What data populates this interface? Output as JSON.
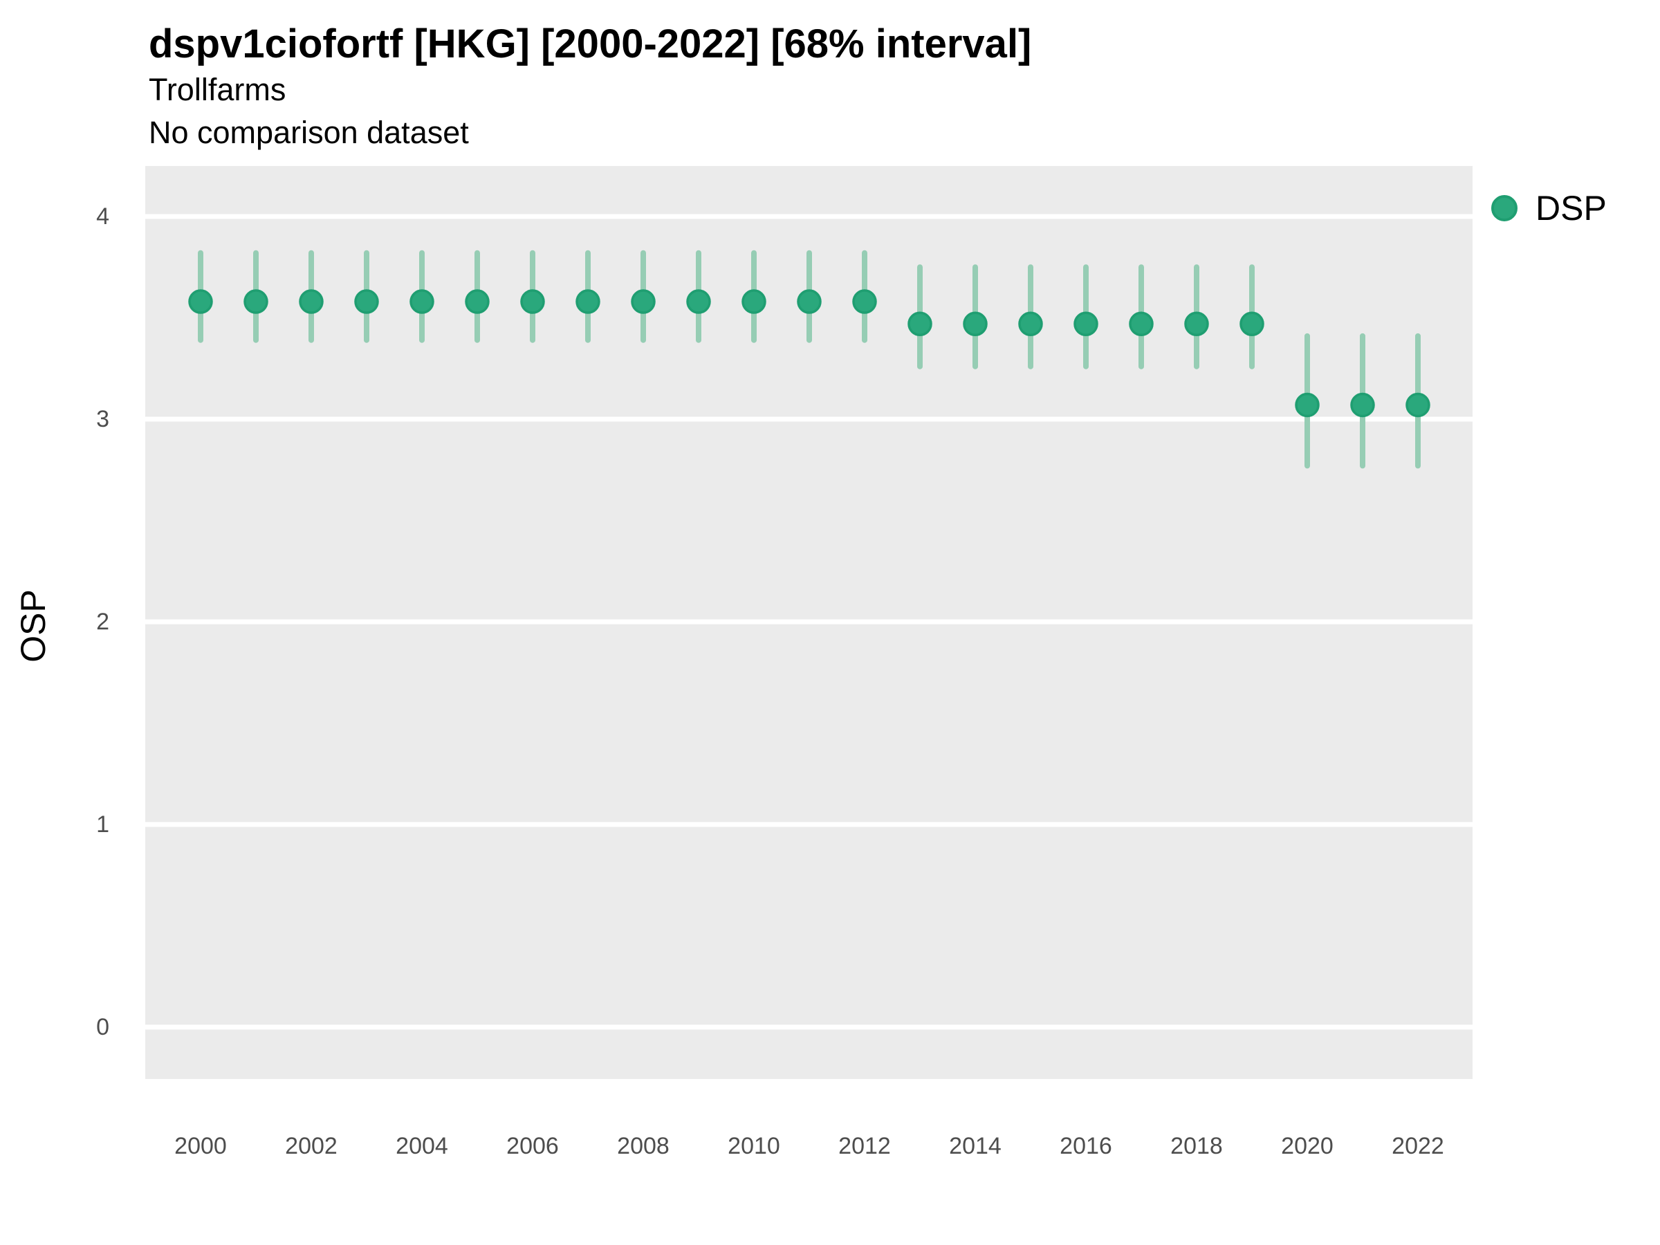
{
  "header": {
    "title": "dspv1ciofortf [HKG] [2000-2022] [68% interval]",
    "subtitle": "Trollfarms",
    "comparison_note": "No comparison dataset"
  },
  "legend": {
    "items": [
      {
        "label": "DSP",
        "color": "#2aa87c"
      }
    ]
  },
  "colors": {
    "plot_background": "#ebebeb",
    "gridline": "#ffffff",
    "marker_fill": "#2aa87c",
    "marker_stroke": "#1f9e71",
    "error_bar": "#96cdb4",
    "tick_text": "#4d4d4d",
    "text": "#000000"
  },
  "chart_data": {
    "type": "scatter",
    "title": "dspv1ciofortf [HKG] [2000-2022] [68% interval]",
    "subtitle": "Trollfarms",
    "note": "No comparison dataset",
    "xlabel": "",
    "ylabel": "OSP",
    "legend_position": "right-top",
    "grid": "major-horizontal-white-on-gray",
    "x": [
      2000,
      2001,
      2002,
      2003,
      2004,
      2005,
      2006,
      2007,
      2008,
      2009,
      2010,
      2011,
      2012,
      2013,
      2014,
      2015,
      2016,
      2017,
      2018,
      2019,
      2020,
      2021,
      2022
    ],
    "x_tick_labels": [
      "2000",
      "2002",
      "2004",
      "2006",
      "2008",
      "2010",
      "2012",
      "2014",
      "2016",
      "2018",
      "2020",
      "2022"
    ],
    "y_ticks": [
      0,
      1,
      2,
      3,
      4
    ],
    "ylim": [
      -0.26,
      4.25
    ],
    "interval": "68%",
    "series": [
      {
        "name": "DSP",
        "values": [
          3.58,
          3.58,
          3.58,
          3.58,
          3.58,
          3.58,
          3.58,
          3.58,
          3.58,
          3.58,
          3.58,
          3.58,
          3.58,
          3.47,
          3.47,
          3.47,
          3.47,
          3.47,
          3.47,
          3.47,
          3.07,
          3.07,
          3.07
        ],
        "lower_68": [
          3.39,
          3.39,
          3.39,
          3.39,
          3.39,
          3.39,
          3.39,
          3.39,
          3.39,
          3.39,
          3.39,
          3.39,
          3.39,
          3.26,
          3.26,
          3.26,
          3.26,
          3.26,
          3.26,
          3.26,
          2.77,
          2.77,
          2.77
        ],
        "upper_68": [
          3.82,
          3.82,
          3.82,
          3.82,
          3.82,
          3.82,
          3.82,
          3.82,
          3.82,
          3.82,
          3.82,
          3.82,
          3.82,
          3.75,
          3.75,
          3.75,
          3.75,
          3.75,
          3.75,
          3.75,
          3.41,
          3.41,
          3.41
        ]
      }
    ]
  }
}
